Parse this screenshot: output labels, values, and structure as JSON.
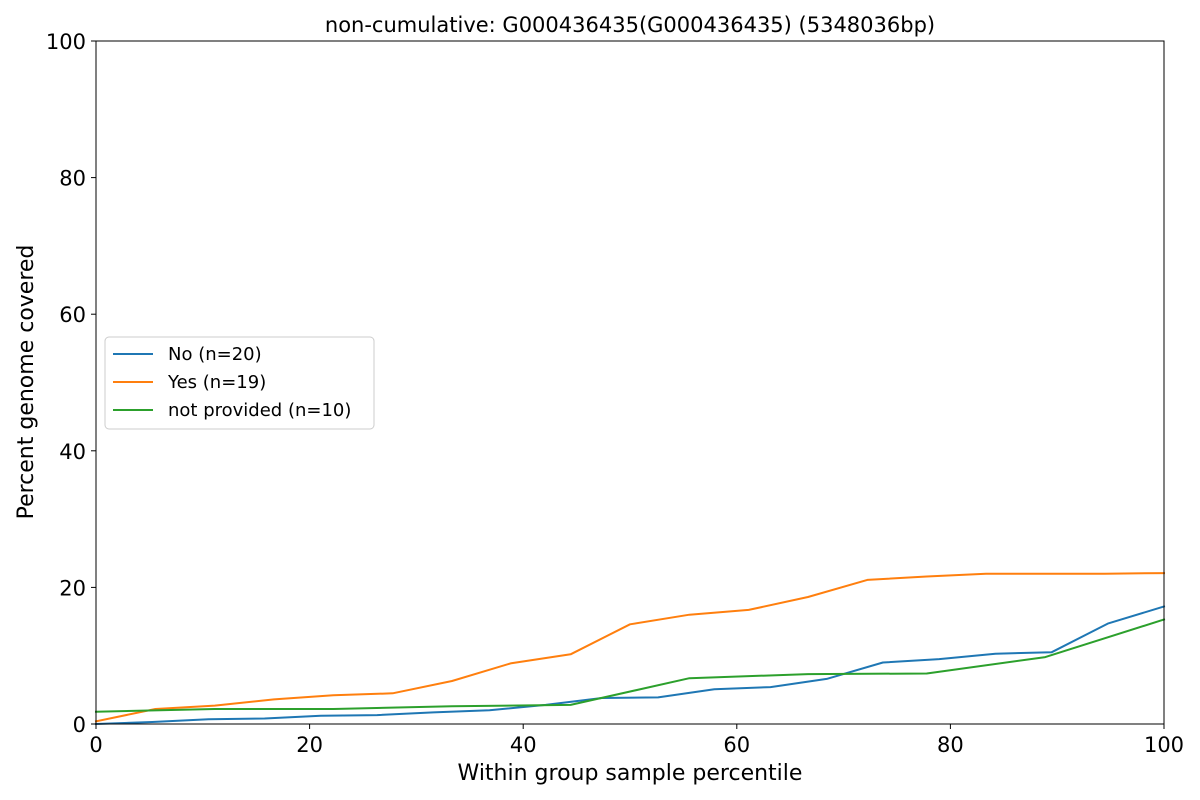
{
  "chart_data": {
    "type": "line",
    "title": "non-cumulative: G000436435(G000436435) (5348036bp)",
    "xlabel": "Within group sample percentile",
    "ylabel": "Percent genome covered",
    "xlim": [
      0,
      100
    ],
    "ylim": [
      0,
      100
    ],
    "xticks": [
      "0",
      "20",
      "40",
      "60",
      "80",
      "100"
    ],
    "yticks": [
      "0",
      "20",
      "40",
      "60",
      "80",
      "100"
    ],
    "grid": false,
    "legend_position": "center-left",
    "series": [
      {
        "name": "No (n=20)",
        "color": "#1f77b4",
        "x": [
          0,
          5.26,
          10.53,
          15.79,
          21.05,
          26.32,
          31.58,
          36.84,
          42.11,
          47.37,
          52.63,
          57.89,
          63.16,
          68.42,
          73.68,
          78.95,
          84.21,
          89.47,
          94.74,
          100
        ],
        "y": [
          0.0,
          0.3,
          0.7,
          0.8,
          1.2,
          1.3,
          1.7,
          2.0,
          2.8,
          3.8,
          3.9,
          5.1,
          5.4,
          6.6,
          9.0,
          9.5,
          10.3,
          10.5,
          14.7,
          17.2
        ]
      },
      {
        "name": "Yes (n=19)",
        "color": "#ff7f0e",
        "x": [
          0,
          5.56,
          11.11,
          16.67,
          22.22,
          27.78,
          33.33,
          38.89,
          44.44,
          50.0,
          55.56,
          61.11,
          66.67,
          72.22,
          77.78,
          83.33,
          88.89,
          94.44,
          100
        ],
        "y": [
          0.4,
          2.2,
          2.7,
          3.6,
          4.2,
          4.5,
          6.3,
          8.9,
          10.2,
          14.6,
          16.0,
          16.7,
          18.6,
          21.1,
          21.6,
          22.0,
          22.0,
          22.0,
          22.1
        ]
      },
      {
        "name": "not provided (n=10)",
        "color": "#2ca02c",
        "x": [
          0,
          11.11,
          22.22,
          33.33,
          44.44,
          55.56,
          66.67,
          77.78,
          88.89,
          100
        ],
        "y": [
          1.8,
          2.2,
          2.2,
          2.6,
          2.8,
          6.7,
          7.3,
          7.4,
          9.8,
          15.3
        ]
      }
    ]
  }
}
